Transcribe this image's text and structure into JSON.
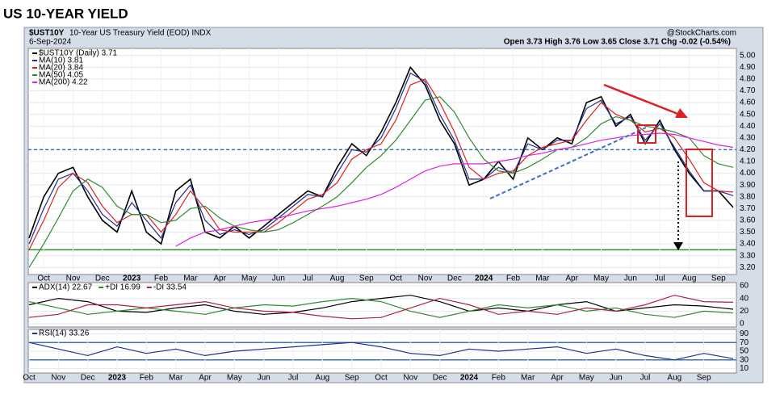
{
  "chart_data": [
    {
      "type": "line",
      "title": "US 10-YEAR YIELD",
      "symbol": "$UST10Y",
      "description": "10-Year US Treasury Yield (EOD) INDX",
      "date": "6-Sep-2024",
      "source": "@StockCharts.com",
      "quote": "Open 3.73 High 3.76 Low 3.65 Close 3.71 Chg -0.02 (-0.54%)",
      "categories": [
        null,
        "Oct",
        null,
        "Nov",
        null,
        "Dec",
        null,
        "2023",
        null,
        "Feb",
        null,
        "Mar",
        null,
        "Apr",
        null,
        "May",
        null,
        "Jun",
        null,
        "Jul",
        null,
        "Aug",
        null,
        "Sep",
        null,
        "Oct",
        null,
        "Nov",
        null,
        "Dec",
        null,
        "2024",
        null,
        "Feb",
        null,
        "Mar",
        null,
        "Apr",
        null,
        "May",
        null,
        "Jun",
        null,
        "Jul",
        null,
        "Aug",
        null,
        "Sep",
        null
      ],
      "series": [
        {
          "name": "$UST10Y (Daily) 3.71",
          "color": "#000000",
          "values": [
            3.45,
            3.8,
            4.0,
            4.05,
            3.8,
            3.6,
            3.5,
            3.85,
            3.5,
            3.4,
            3.85,
            3.95,
            3.5,
            3.45,
            3.55,
            3.45,
            3.55,
            3.65,
            3.75,
            3.85,
            3.8,
            4.05,
            4.25,
            4.15,
            4.35,
            4.6,
            4.9,
            4.75,
            4.45,
            4.25,
            3.9,
            3.95,
            4.1,
            3.95,
            4.3,
            4.2,
            4.3,
            4.25,
            4.6,
            4.65,
            4.4,
            4.5,
            4.25,
            4.45,
            4.2,
            4.0,
            3.85,
            3.85,
            3.71
          ]
        },
        {
          "name": "MA(10) 3.81",
          "color": "#1f2f8f",
          "values": [
            3.4,
            3.7,
            3.95,
            4.0,
            3.85,
            3.65,
            3.55,
            3.75,
            3.6,
            3.45,
            3.75,
            3.9,
            3.6,
            3.48,
            3.52,
            3.48,
            3.52,
            3.62,
            3.72,
            3.82,
            3.8,
            4.0,
            4.2,
            4.18,
            4.3,
            4.55,
            4.85,
            4.78,
            4.5,
            4.28,
            3.95,
            3.95,
            4.05,
            4.0,
            4.25,
            4.2,
            4.28,
            4.28,
            4.55,
            4.62,
            4.42,
            4.48,
            4.28,
            4.42,
            4.22,
            4.02,
            3.85,
            3.85,
            3.81
          ]
        },
        {
          "name": "MA(20) 3.84",
          "color": "#e02020",
          "values": [
            3.35,
            3.6,
            3.88,
            4.0,
            3.92,
            3.72,
            3.58,
            3.65,
            3.65,
            3.5,
            3.65,
            3.85,
            3.7,
            3.52,
            3.5,
            3.5,
            3.5,
            3.58,
            3.68,
            3.78,
            3.82,
            3.92,
            4.12,
            4.2,
            4.25,
            4.45,
            4.75,
            4.8,
            4.6,
            4.35,
            4.05,
            3.95,
            4.0,
            4.02,
            4.15,
            4.22,
            4.25,
            4.28,
            4.45,
            4.6,
            4.5,
            4.45,
            4.35,
            4.38,
            4.3,
            4.12,
            3.92,
            3.85,
            3.84
          ]
        },
        {
          "name": "MA(50) 4.05",
          "color": "#2e8b2e",
          "values": [
            3.2,
            3.4,
            3.62,
            3.85,
            3.95,
            3.88,
            3.72,
            3.65,
            3.65,
            3.58,
            3.6,
            3.7,
            3.72,
            3.62,
            3.55,
            3.52,
            3.5,
            3.52,
            3.58,
            3.65,
            3.72,
            3.8,
            3.92,
            4.05,
            4.15,
            4.28,
            4.45,
            4.62,
            4.65,
            4.52,
            4.3,
            4.12,
            4.02,
            4.0,
            4.05,
            4.12,
            4.2,
            4.22,
            4.3,
            4.42,
            4.48,
            4.45,
            4.4,
            4.38,
            4.35,
            4.3,
            4.15,
            4.08,
            4.05
          ]
        },
        {
          "name": "MA(200) 4.22",
          "color": "#e020e0",
          "values": [
            null,
            null,
            null,
            null,
            null,
            null,
            null,
            null,
            null,
            null,
            3.38,
            3.45,
            3.5,
            3.52,
            3.55,
            3.58,
            3.6,
            3.62,
            3.65,
            3.68,
            3.7,
            3.72,
            3.75,
            3.78,
            3.82,
            3.88,
            3.95,
            4.02,
            4.06,
            4.08,
            4.08,
            4.08,
            4.1,
            4.12,
            4.15,
            4.17,
            4.2,
            4.22,
            4.25,
            4.28,
            4.3,
            4.32,
            4.33,
            4.34,
            4.33,
            4.3,
            4.27,
            4.24,
            4.22
          ]
        }
      ],
      "hlines": [
        {
          "value": 4.2,
          "color": "#3a6fc4",
          "dashed": true
        },
        {
          "value": 3.35,
          "color": "#2e8b2e",
          "dashed": false
        }
      ],
      "ylim": [
        3.14,
        5.06
      ],
      "yticks": [
        {
          "value": 3.2,
          "label": "3.20"
        },
        {
          "value": 3.3,
          "label": "3.30"
        },
        {
          "value": 3.4,
          "label": "3.40"
        },
        {
          "value": 3.5,
          "label": "3.50"
        },
        {
          "value": 3.6,
          "label": "3.60"
        },
        {
          "value": 3.7,
          "label": "3.70"
        },
        {
          "value": 3.8,
          "label": "3.80"
        },
        {
          "value": 3.9,
          "label": "3.90"
        },
        {
          "value": 4.0,
          "label": "4.00"
        },
        {
          "value": 4.1,
          "label": "4.10"
        },
        {
          "value": 4.2,
          "label": "4.20"
        },
        {
          "value": 4.3,
          "label": "4.30"
        },
        {
          "value": 4.4,
          "label": "4.40"
        },
        {
          "value": 4.5,
          "label": "4.50"
        },
        {
          "value": 4.6,
          "label": "4.60"
        },
        {
          "value": 4.7,
          "label": "4.70"
        },
        {
          "value": 4.8,
          "label": "4.80"
        },
        {
          "value": 4.9,
          "label": "4.90"
        },
        {
          "value": 5.0,
          "label": "5.00"
        }
      ],
      "grid": true
    },
    {
      "type": "line",
      "series": [
        {
          "name": "ADX(14) 22.67",
          "color": "#000000",
          "values": [
            30,
            40,
            35,
            20,
            18,
            25,
            30,
            20,
            15,
            18,
            25,
            35,
            40,
            45,
            35,
            20,
            25,
            20,
            30,
            35,
            20,
            25,
            30,
            28,
            23
          ]
        },
        {
          "name": "+DI 16.99",
          "color": "#2e8b2e",
          "values": [
            35,
            25,
            15,
            20,
            25,
            20,
            15,
            25,
            30,
            28,
            35,
            40,
            35,
            20,
            10,
            20,
            30,
            25,
            30,
            20,
            25,
            15,
            10,
            20,
            17
          ]
        },
        {
          "name": "-DI 33.54",
          "color": "#b02040",
          "values": [
            10,
            15,
            30,
            30,
            25,
            30,
            35,
            25,
            20,
            18,
            12,
            8,
            10,
            25,
            40,
            30,
            15,
            20,
            15,
            25,
            20,
            30,
            45,
            35,
            34
          ]
        }
      ],
      "ylim": [
        -5,
        65
      ],
      "yticks": [
        0,
        20,
        40,
        60
      ],
      "grid": true
    },
    {
      "type": "line",
      "categories": [
        "Oct",
        "Nov",
        "Dec",
        "2023",
        "Feb",
        "Mar",
        "Apr",
        "May",
        "Jun",
        "Jul",
        "Aug",
        "Sep",
        "Oct",
        "Nov",
        "Dec",
        "2024",
        "Feb",
        "Mar",
        "Apr",
        "May",
        "Jun",
        "Jul",
        "Aug",
        "Sep",
        null
      ],
      "series": [
        {
          "name": "RSI(14) 33.26",
          "color": "#1f2f8f",
          "values": [
            70,
            55,
            40,
            60,
            45,
            55,
            40,
            50,
            55,
            60,
            65,
            70,
            60,
            45,
            40,
            55,
            50,
            55,
            60,
            45,
            55,
            40,
            30,
            45,
            33
          ]
        }
      ],
      "hlines": [
        {
          "value": 70,
          "color": "#3a6fc4",
          "dashed": false
        },
        {
          "value": 30,
          "color": "#3a6fc4",
          "dashed": false
        }
      ],
      "ylim": [
        0,
        100
      ],
      "yticks": [
        10,
        30,
        50,
        70,
        90
      ],
      "grid": true
    }
  ]
}
